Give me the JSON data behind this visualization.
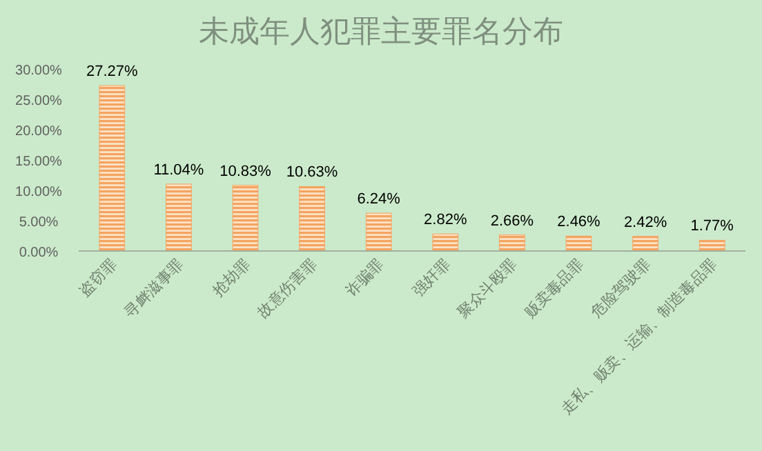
{
  "chart_data": {
    "type": "bar",
    "title": "未成年人犯罪主要罪名分布",
    "categories": [
      "盗窃罪",
      "寻衅滋事罪",
      "抢劫罪",
      "故意伤害罪",
      "诈骗罪",
      "强奸罪",
      "聚众斗殴罪",
      "贩卖毒品罪",
      "危险驾驶罪",
      "走私、贩卖、运输、制造毒品罪"
    ],
    "values": [
      27.27,
      11.04,
      10.83,
      10.63,
      6.24,
      2.82,
      2.66,
      2.46,
      2.42,
      1.77
    ],
    "value_labels": [
      "27.27%",
      "11.04%",
      "10.83%",
      "10.63%",
      "6.24%",
      "2.82%",
      "2.66%",
      "2.46%",
      "2.42%",
      "1.77%"
    ],
    "color": "#f4a460",
    "ylim": [
      0,
      30
    ],
    "yticks": [
      {
        "value": 0,
        "label": "0.00%"
      },
      {
        "value": 5,
        "label": "5.00%"
      },
      {
        "value": 10,
        "label": "10.00%"
      },
      {
        "value": 15,
        "label": "15.00%"
      },
      {
        "value": 20,
        "label": "20.00%"
      },
      {
        "value": 25,
        "label": "25.00%"
      },
      {
        "value": 30,
        "label": "30.00%"
      }
    ],
    "grid": false
  }
}
